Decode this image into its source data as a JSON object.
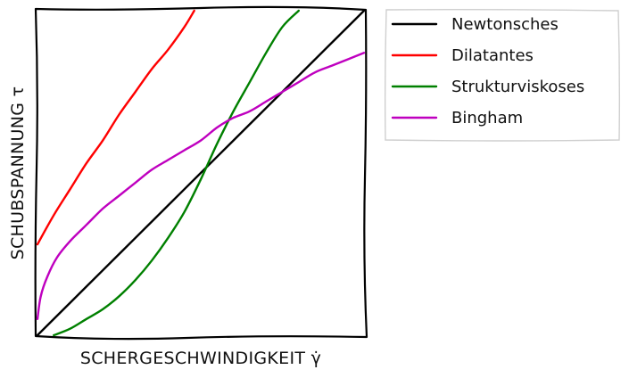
{
  "chart_data": {
    "type": "line",
    "xlabel": "SCHERGESCHWINDIGKEIT γ̇",
    "ylabel": "SCHUBSPANNUNG τ",
    "xlim": [
      0,
      1
    ],
    "ylim": [
      0,
      1
    ],
    "grid": false,
    "legend_position": "outside-right-top",
    "series": [
      {
        "name": "Newtonsches",
        "color": "#000000",
        "x": [
          0.0,
          0.1,
          0.2,
          0.3,
          0.4,
          0.5,
          0.6,
          0.7,
          0.8,
          0.9,
          1.0
        ],
        "y": [
          0.0,
          0.1,
          0.2,
          0.3,
          0.4,
          0.5,
          0.6,
          0.7,
          0.8,
          0.9,
          1.0
        ]
      },
      {
        "name": "Dilatantes",
        "color": "#ff0000",
        "x": [
          0.0,
          0.05,
          0.1,
          0.15,
          0.2,
          0.25,
          0.3,
          0.35,
          0.4,
          0.45,
          0.48
        ],
        "y": [
          0.28,
          0.37,
          0.45,
          0.53,
          0.6,
          0.68,
          0.75,
          0.82,
          0.88,
          0.95,
          1.0
        ]
      },
      {
        "name": "Strukturviskoses",
        "color": "#008000",
        "x": [
          0.05,
          0.1,
          0.15,
          0.2,
          0.25,
          0.3,
          0.35,
          0.4,
          0.45,
          0.5,
          0.55,
          0.6,
          0.65,
          0.7,
          0.75,
          0.8
        ],
        "y": [
          0.0,
          0.02,
          0.05,
          0.08,
          0.12,
          0.17,
          0.23,
          0.3,
          0.38,
          0.48,
          0.59,
          0.69,
          0.78,
          0.87,
          0.95,
          1.0
        ]
      },
      {
        "name": "Bingham",
        "color": "#bf00bf",
        "x": [
          0.0,
          0.01,
          0.03,
          0.06,
          0.1,
          0.15,
          0.2,
          0.25,
          0.3,
          0.35,
          0.4,
          0.45,
          0.5,
          0.55,
          0.6,
          0.65,
          0.7,
          0.75,
          0.8,
          0.85,
          0.9,
          0.95,
          1.0
        ],
        "y": [
          0.05,
          0.12,
          0.18,
          0.24,
          0.29,
          0.34,
          0.39,
          0.43,
          0.47,
          0.51,
          0.54,
          0.57,
          0.6,
          0.64,
          0.67,
          0.69,
          0.72,
          0.75,
          0.78,
          0.81,
          0.83,
          0.85,
          0.87
        ]
      }
    ]
  }
}
